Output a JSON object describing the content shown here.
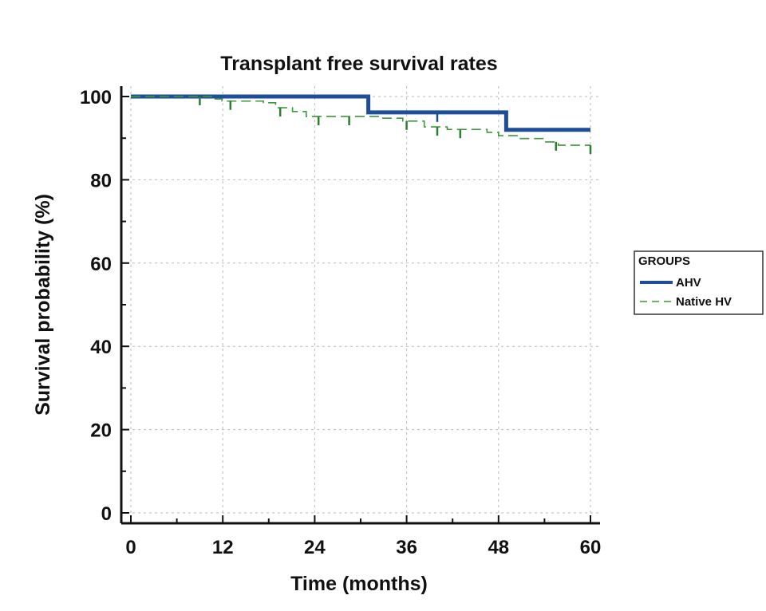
{
  "chart_data": {
    "type": "line",
    "subtype": "kaplan-meier step",
    "title": "Transplant free survival rates",
    "xlabel": "Time (months)",
    "ylabel": "Survival probability (%)",
    "xlim": [
      0,
      60
    ],
    "ylim": [
      0,
      100
    ],
    "xticks": [
      0,
      12,
      24,
      36,
      48,
      60
    ],
    "yticks": [
      0,
      20,
      40,
      60,
      80,
      100
    ],
    "grid": true,
    "legend": {
      "title": "GROUPS",
      "placement": "right",
      "entries": [
        "AHV",
        "Native HV"
      ]
    },
    "series": [
      {
        "name": "AHV",
        "color": "#1f4e99",
        "style": "solid",
        "steps": [
          [
            0,
            100
          ],
          [
            31,
            96.2
          ],
          [
            49,
            92.0
          ],
          [
            60,
            92.0
          ]
        ],
        "censored": [
          40
        ]
      },
      {
        "name": "Native HV",
        "color": "#3a9a3a",
        "style": "dashed",
        "steps": [
          [
            0,
            100
          ],
          [
            10.8,
            99.4
          ],
          [
            11.9,
            98.9
          ],
          [
            17.3,
            98.5
          ],
          [
            18.9,
            97.3
          ],
          [
            21.1,
            96.4
          ],
          [
            22.9,
            95.2
          ],
          [
            32.9,
            94.8
          ],
          [
            35.5,
            94.1
          ],
          [
            38.3,
            92.7
          ],
          [
            41.3,
            92.1
          ],
          [
            46.5,
            91.4
          ],
          [
            48.0,
            90.6
          ],
          [
            50.6,
            89.9
          ],
          [
            53.8,
            89.1
          ],
          [
            55.8,
            88.3
          ],
          [
            60,
            88.3
          ]
        ],
        "censored": [
          9,
          13,
          19.5,
          24.5,
          28.5,
          36,
          40,
          43,
          55.5,
          60
        ]
      }
    ]
  }
}
